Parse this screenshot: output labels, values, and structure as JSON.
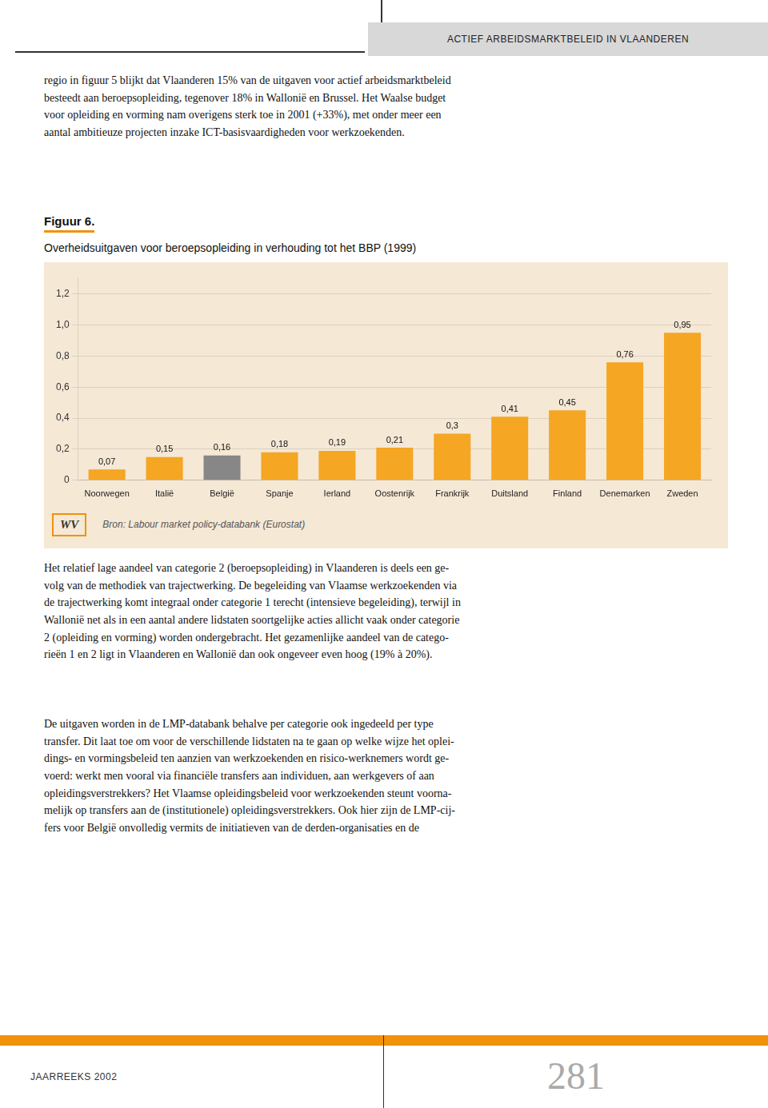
{
  "page": {
    "header": "ACTIEF ARBEIDSMARKTBELEID IN VLAANDEREN",
    "intro": "regio in figuur 5 blijkt dat Vlaanderen 15% van de uitgaven voor actief arbeidsmarktbeleid\nbesteedt aan beroepsopleiding, tegenover 18% in Wallonië en Brussel. Het Waalse budget\nvoor opleiding en vorming nam overigens sterk toe in 2001 (+33%), met onder meer een\naantal ambitieuze projecten inzake ICT-basisvaardigheden voor werkzoekenden.",
    "body": [
      "Het relatief lage aandeel van categorie 2 (beroepsopleiding) in Vlaanderen is deels een ge-\nvolg van de methodiek van trajectwerking. De begeleiding van Vlaamse werkzoekenden via\nde trajectwerking komt integraal onder categorie 1 terecht (intensieve begeleiding), terwijl in\nWallonië net als in een aantal andere lidstaten soortgelijke acties allicht vaak onder categorie\n2 (opleiding en vorming) worden ondergebracht. Het gezamenlijke aandeel van de catego-\nrieën 1 en 2 ligt in Vlaanderen en Wallonië dan ook ongeveer even hoog (19% à 20%).",
      "De uitgaven worden in de LMP-databank behalve per categorie ook ingedeeld per type\ntransfer. Dit laat toe om voor de verschillende lidstaten na te gaan op welke wijze het oplei-\ndings- en vormingsbeleid ten aanzien van werkzoekenden en risico-werknemers wordt ge-\nvoerd: werkt men vooral via financiële transfers aan individuen, aan werkgevers of aan\nopleidingsverstrekkers? Het Vlaamse opleidingsbeleid voor werkzoekenden steunt voorna-\nmelijk op transfers aan de (institutionele) opleidingsverstrekkers. Ook hier zijn de LMP-cij-\nfers voor België onvolledig vermits de initiatieven van de derden-organisaties en de"
    ],
    "logo": "WV",
    "footer": "JAARREEKS 2002",
    "page_number": "281"
  },
  "chart_data": {
    "type": "bar",
    "title": "Figuur 6.",
    "subtitle": "Overheidsuitgaven voor beroepsopleiding in verhouding tot het BBP (1999)",
    "categories": [
      "Noorwegen",
      "Italië",
      "België",
      "Spanje",
      "Ierland",
      "Oostenrijk",
      "Frankrijk",
      "Duitsland",
      "Finland",
      "Denemarken",
      "Zweden"
    ],
    "values": [
      0.07,
      0.15,
      0.16,
      0.18,
      0.19,
      0.21,
      0.3,
      0.41,
      0.45,
      0.76,
      0.95
    ],
    "value_labels": [
      "0,07",
      "0,15",
      "0,16",
      "0,18",
      "0,19",
      "0,21",
      "0,3",
      "0,41",
      "0,45",
      "0,76",
      "0,95"
    ],
    "colors": [
      "#F5A623",
      "#F5A623",
      "#878787",
      "#F5A623",
      "#F5A623",
      "#F5A623",
      "#F5A623",
      "#F5A623",
      "#F5A623",
      "#F5A623",
      "#F5A623"
    ],
    "ylim": [
      0,
      1.3
    ],
    "yticks": [
      0,
      {
        "value": 0.2,
        "label": "0,2"
      },
      {
        "value": 0.4,
        "label": "0,4"
      },
      {
        "value": 0.6,
        "label": "0,6"
      },
      {
        "value": 0.8,
        "label": "0,8"
      },
      {
        "value": 1.0,
        "label": "1,0"
      },
      {
        "value": 1.2,
        "label": "1,2"
      }
    ],
    "grid": true,
    "data_labels": true,
    "annotations": [
      "Bron: Labour market policy-databank (Eurostat)"
    ]
  }
}
